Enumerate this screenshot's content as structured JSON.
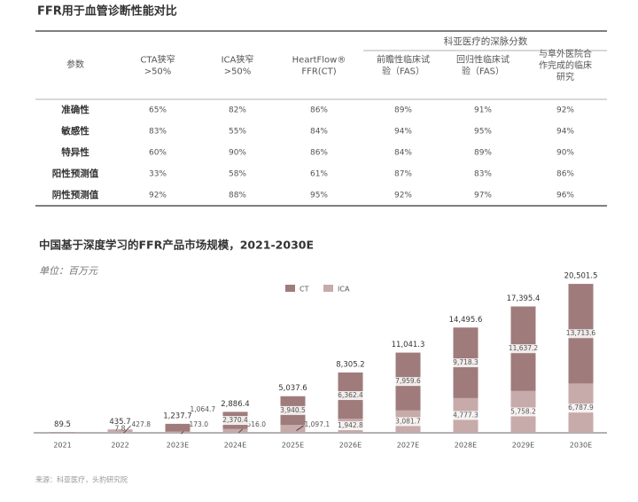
{
  "table": {
    "title": "FFR用于血管诊断性能对比",
    "group_header": "科亚医疗的深脉分数",
    "columns": [
      [
        "参数"
      ],
      [
        "CTA狭窄",
        ">50%"
      ],
      [
        "ICA狭窄",
        ">50%"
      ],
      [
        "HeartFlow®",
        "FFR(CT)"
      ],
      [
        "前瞻性临床试",
        "验（FAS）"
      ],
      [
        "回归性临床试",
        "验（FAS）"
      ],
      [
        "与阜外医院合",
        "作完成的临床",
        "研究"
      ]
    ],
    "rows": [
      [
        "准确性",
        "65%",
        "82%",
        "86%",
        "89%",
        "91%",
        "92%"
      ],
      [
        "敏感性",
        "83%",
        "55%",
        "84%",
        "94%",
        "95%",
        "94%"
      ],
      [
        "特异性",
        "60%",
        "90%",
        "86%",
        "84%",
        "89%",
        "90%"
      ],
      [
        "阳性预测值",
        "33%",
        "58%",
        "61%",
        "87%",
        "83%",
        "86%"
      ],
      [
        "阴性预测值",
        "92%",
        "88%",
        "95%",
        "92%",
        "97%",
        "96%"
      ]
    ]
  },
  "chart_data": {
    "type": "stacked-bar",
    "title": "中国基于深度学习的FFR产品市场规模，2021-2030E",
    "subtitle": "单位：百万元",
    "categories": [
      "2021",
      "2022",
      "2023E",
      "2024E",
      "2025E",
      "2026E",
      "2027E",
      "2028E",
      "2029E",
      "2030E"
    ],
    "ylim": [
      0,
      21000
    ],
    "series": [
      {
        "name": "CT",
        "color": "#a07b7b",
        "values": [
          null,
          7.8,
          1064.7,
          2370.4,
          3940.5,
          6362.4,
          7959.6,
          9718.3,
          11637.2,
          13713.6
        ],
        "value_labels": [
          null,
          "7.8",
          "1,064.7",
          "2,370.4",
          "3,940.5",
          "6,362.4",
          "7,959.6",
          "9,718.3",
          "11,637.2",
          "13,713.6"
        ]
      },
      {
        "name": "ICA",
        "color": "#c7aaaa",
        "values": [
          null,
          427.8,
          173.0,
          516.0,
          1097.1,
          1942.8,
          3081.7,
          4777.3,
          5758.2,
          6787.9
        ],
        "value_labels": [
          null,
          "427.8",
          "173.0",
          "516.0",
          "1,097.1",
          "1,942.8",
          "3,081.7",
          "4,777.3",
          "5,758.2",
          "6,787.9"
        ]
      }
    ],
    "totals": {
      "values": [
        89.5,
        435.7,
        1237.7,
        2886.4,
        5037.6,
        8305.2,
        11041.3,
        14495.6,
        17395.4,
        20501.5
      ],
      "value_labels": [
        "89.5",
        "435.7",
        "1,237.7",
        "2,886.4",
        "5,037.6",
        "8,305.2",
        "11,041.3",
        "14,495.6",
        "17,395.4",
        "20,501.5"
      ]
    }
  },
  "source": "来源：科亚医疗，头豹研究院"
}
